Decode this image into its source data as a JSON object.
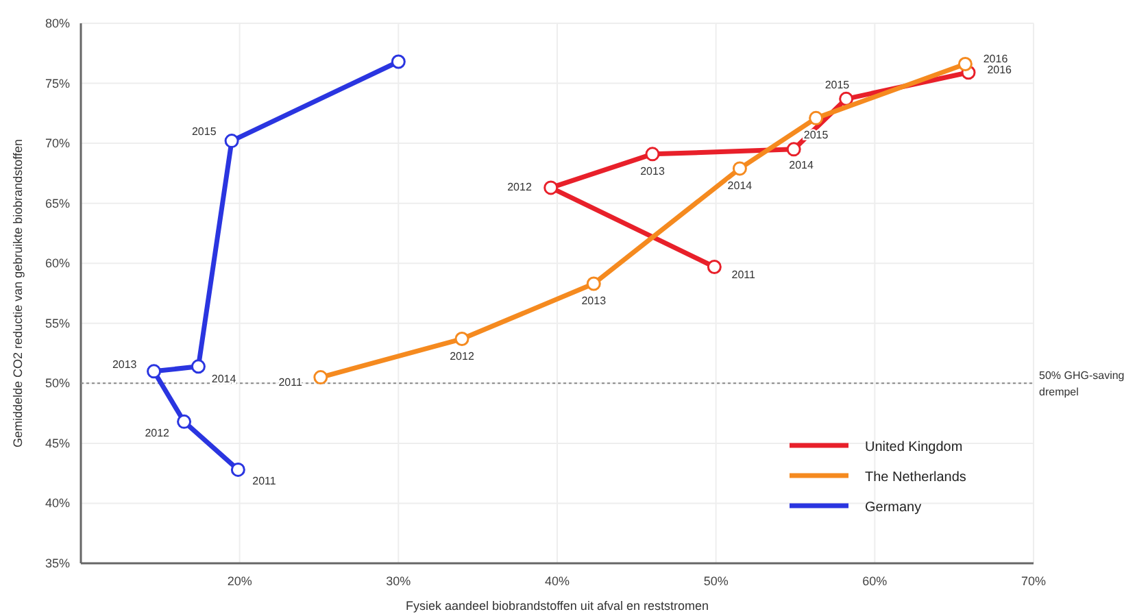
{
  "chart_data": {
    "type": "line",
    "xlabel": "Fysiek aandeel biobrandstoffen uit afval en reststromen",
    "ylabel": "Gemiddelde CO2 reductie van gebruikte biobrandstoffen",
    "xlim": [
      10,
      70
    ],
    "xticks": [
      {
        "value": 20,
        "label": "20%"
      },
      {
        "value": 30,
        "label": "30%"
      },
      {
        "value": 40,
        "label": "40%"
      },
      {
        "value": 50,
        "label": "50%"
      },
      {
        "value": 60,
        "label": "60%"
      },
      {
        "value": 70,
        "label": "70%"
      }
    ],
    "ylim": [
      35,
      80
    ],
    "yticks": [
      {
        "value": 35,
        "label": "35%"
      },
      {
        "value": 40,
        "label": "40%"
      },
      {
        "value": 45,
        "label": "45%"
      },
      {
        "value": 50,
        "label": "50%"
      },
      {
        "value": 55,
        "label": "55%"
      },
      {
        "value": 60,
        "label": "60%"
      },
      {
        "value": 65,
        "label": "65%"
      },
      {
        "value": 70,
        "label": "70%"
      },
      {
        "value": 75,
        "label": "75%"
      },
      {
        "value": 80,
        "label": "80%"
      }
    ],
    "annotations": [
      {
        "text": "2011",
        "x": 49.9,
        "y": 59.7
      },
      {
        "text": "2012",
        "x": 39.6,
        "y": 66.3
      },
      {
        "text": "2013",
        "x": 46.0,
        "y": 69.1
      },
      {
        "text": "2014",
        "x": 54.9,
        "y": 69.5
      },
      {
        "text": "2015",
        "x": 58.2,
        "y": 73.7
      },
      {
        "text": "2016",
        "x": 65.9,
        "y": 75.9
      },
      {
        "text": "2011",
        "x": 25.1,
        "y": 50.5
      },
      {
        "text": "2012",
        "x": 34.0,
        "y": 53.7
      },
      {
        "text": "2013",
        "x": 42.3,
        "y": 58.3
      },
      {
        "text": "2014",
        "x": 51.5,
        "y": 67.9
      },
      {
        "text": "2015",
        "x": 56.3,
        "y": 72.1
      },
      {
        "text": "2016",
        "x": 65.7,
        "y": 76.6
      },
      {
        "text": "2011",
        "x": 19.9,
        "y": 42.8
      },
      {
        "text": "2012",
        "x": 16.5,
        "y": 46.8
      },
      {
        "text": "2013",
        "x": 14.6,
        "y": 51.0
      },
      {
        "text": "2014",
        "x": 17.4,
        "y": 51.4
      },
      {
        "text": "2015",
        "x": 19.5,
        "y": 70.2
      }
    ],
    "grid": true,
    "legend": "bottom right",
    "marker": "circle",
    "line_style": "solid",
    "ref_lines": [
      {
        "axis": "y",
        "value": 50,
        "label": "50% GHG-saving drempel",
        "color": "#888888",
        "line_style": "dotted"
      }
    ],
    "series": [
      {
        "name": "United Kingdom",
        "color": "#e8202a",
        "x": [
          49.9,
          39.6,
          46.0,
          54.9,
          58.2,
          65.9
        ],
        "values": [
          59.7,
          66.3,
          69.1,
          69.5,
          73.7,
          75.9
        ]
      },
      {
        "name": "The Netherlands",
        "color": "#f58a1f",
        "x": [
          25.1,
          34.0,
          42.3,
          51.5,
          56.3,
          65.7
        ],
        "values": [
          50.5,
          53.7,
          58.3,
          67.9,
          72.1,
          76.6
        ]
      },
      {
        "name": "Germany",
        "color": "#2a35e0",
        "x": [
          19.9,
          16.5,
          14.6,
          17.4,
          19.5,
          30.0
        ],
        "values": [
          42.8,
          46.8,
          51.0,
          51.4,
          70.2,
          76.8
        ]
      }
    ]
  }
}
